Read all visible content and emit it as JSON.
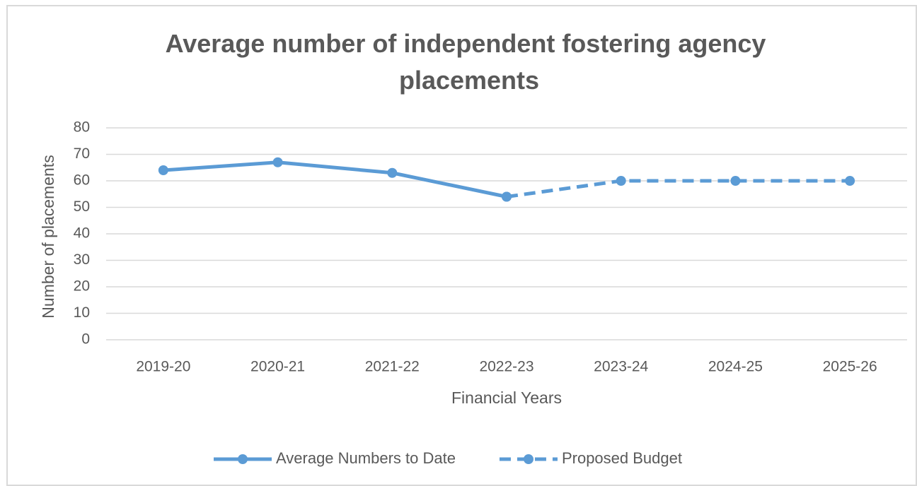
{
  "chart_data": {
    "type": "line",
    "title": "Average number of independent fostering agency placements",
    "x_label": "Financial Years",
    "y_label": "Number of placements",
    "categories": [
      "2019-20",
      "2020-21",
      "2021-22",
      "2022-23",
      "2023-24",
      "2024-25",
      "2025-26"
    ],
    "series": [
      {
        "name": "Average Numbers to Date",
        "color": "#5b9bd5",
        "dashed": false,
        "values": [
          64,
          67,
          63,
          54,
          null,
          null,
          null
        ]
      },
      {
        "name": "Proposed Budget",
        "color": "#5b9bd5",
        "dashed": true,
        "values": [
          null,
          null,
          null,
          54,
          60,
          60,
          60
        ]
      }
    ],
    "ylim": [
      0,
      80
    ],
    "yticks": [
      0,
      10,
      20,
      30,
      40,
      50,
      60,
      70,
      80
    ],
    "grid": true,
    "legend": "bottom"
  }
}
